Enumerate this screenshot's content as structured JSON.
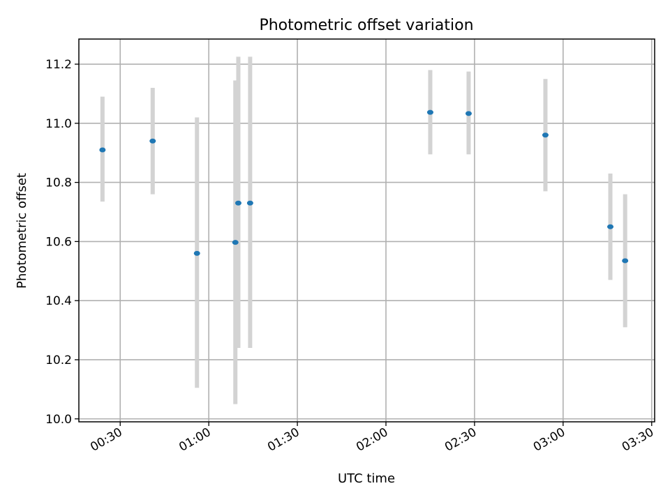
{
  "chart_data": {
    "type": "scatter",
    "title": "Photometric offset variation",
    "xlabel": "UTC time",
    "ylabel": "Photometric offset",
    "xlim": [
      "00:16",
      "03:31"
    ],
    "ylim": [
      9.99,
      11.285
    ],
    "x_ticks": [
      "00:30",
      "01:00",
      "01:30",
      "02:00",
      "02:30",
      "03:00",
      "03:30"
    ],
    "y_ticks": [
      "10.0",
      "10.2",
      "10.4",
      "10.6",
      "10.8",
      "11.0",
      "11.2"
    ],
    "grid": true,
    "points": [
      {
        "time": "00:24",
        "value": 10.91,
        "err_low": 10.735,
        "err_high": 11.09
      },
      {
        "time": "00:41",
        "value": 10.94,
        "err_low": 10.76,
        "err_high": 11.12
      },
      {
        "time": "00:56",
        "value": 10.56,
        "err_low": 10.105,
        "err_high": 11.02
      },
      {
        "time": "01:09",
        "value": 10.597,
        "err_low": 10.05,
        "err_high": 11.145
      },
      {
        "time": "01:10",
        "value": 10.73,
        "err_low": 10.24,
        "err_high": 11.225
      },
      {
        "time": "01:14",
        "value": 10.73,
        "err_low": 10.24,
        "err_high": 11.225
      },
      {
        "time": "02:15",
        "value": 11.037,
        "err_low": 10.895,
        "err_high": 11.18
      },
      {
        "time": "02:28",
        "value": 11.033,
        "err_low": 10.895,
        "err_high": 11.175
      },
      {
        "time": "02:54",
        "value": 10.96,
        "err_low": 10.77,
        "err_high": 11.15
      },
      {
        "time": "03:16",
        "value": 10.65,
        "err_low": 10.47,
        "err_high": 10.83
      },
      {
        "time": "03:21",
        "value": 10.535,
        "err_low": 10.31,
        "err_high": 10.76
      }
    ],
    "colors": {
      "point": "#1f77b4",
      "errorbar": "#d3d3d3",
      "grid": "#b0b0b0",
      "axes": "#000000"
    }
  }
}
